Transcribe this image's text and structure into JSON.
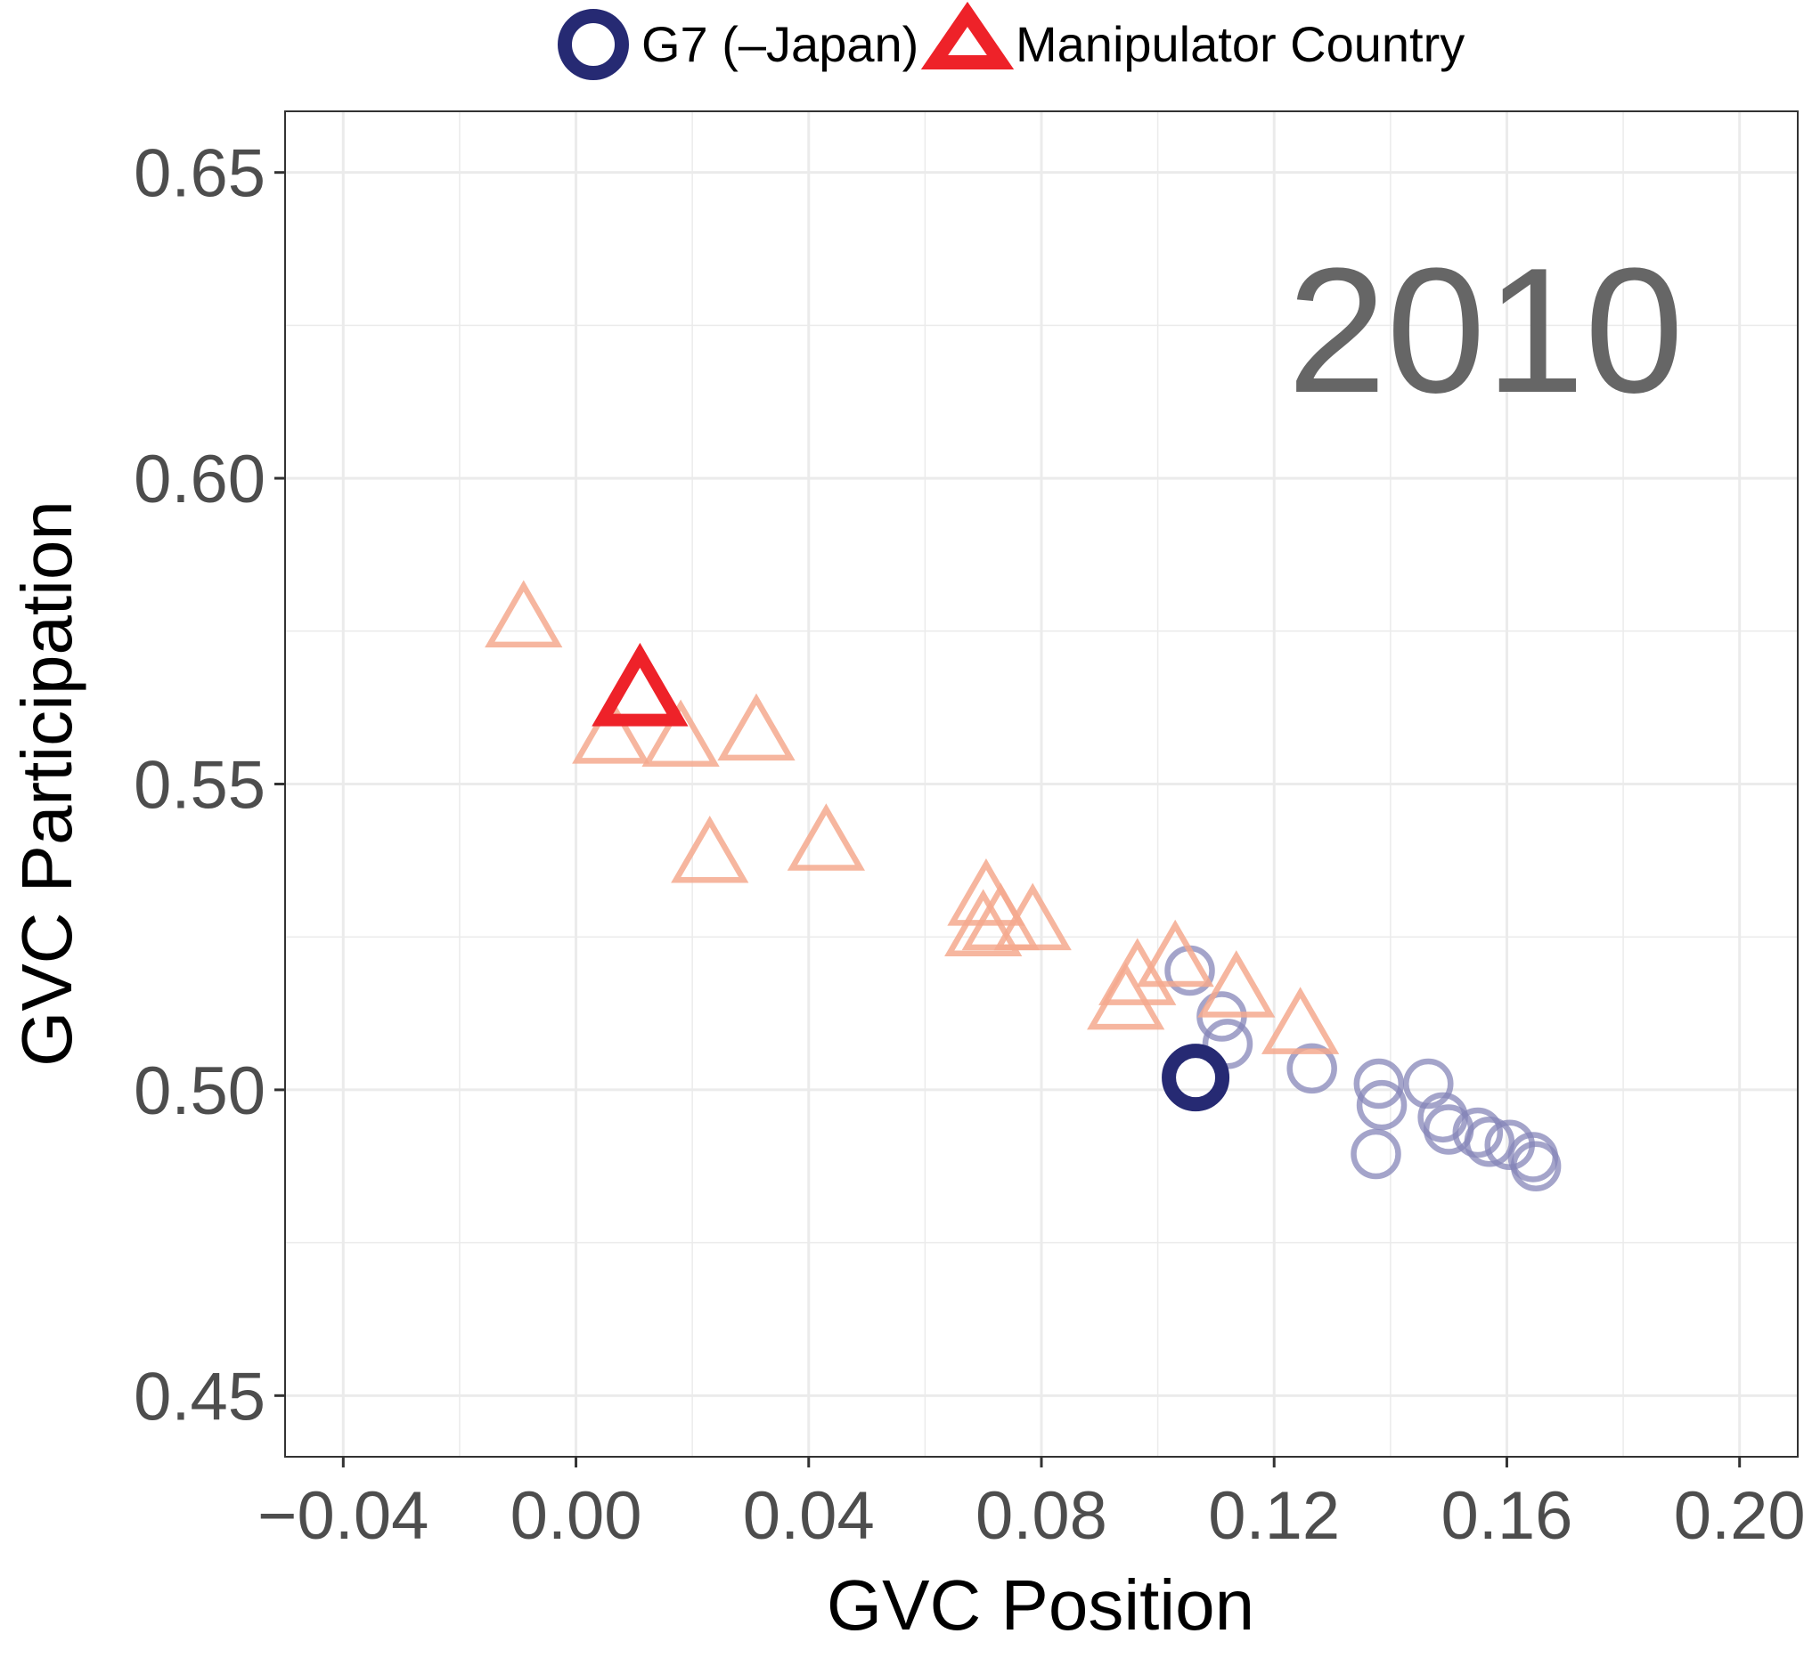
{
  "chart_data": {
    "type": "scatter",
    "xlabel": "GVC Position",
    "ylabel": "GVC Participation",
    "annotation": "2010",
    "xlim": [
      -0.05,
      0.21
    ],
    "ylim": [
      0.44,
      0.66
    ],
    "x_ticks": [
      -0.04,
      0.0,
      0.04,
      0.08,
      0.12,
      0.16,
      0.2
    ],
    "x_tick_labels": [
      "−0.04",
      "0.00",
      "0.04",
      "0.08",
      "0.12",
      "0.16",
      "0.20"
    ],
    "y_ticks": [
      0.45,
      0.5,
      0.55,
      0.6,
      0.65
    ],
    "y_tick_labels": [
      "0.45",
      "0.50",
      "0.55",
      "0.60",
      "0.65"
    ],
    "grid": true,
    "legend_position": "top",
    "series": [
      {
        "name": "G7 (–Japan)",
        "marker": "circle",
        "color": "#262a73",
        "highlight": {
          "x": 0.1065,
          "y": 0.502
        },
        "background": [
          {
            "x": 0.1055,
            "y": 0.5195
          },
          {
            "x": 0.111,
            "y": 0.512
          },
          {
            "x": 0.112,
            "y": 0.5075
          },
          {
            "x": 0.1265,
            "y": 0.5035
          },
          {
            "x": 0.138,
            "y": 0.501
          },
          {
            "x": 0.1385,
            "y": 0.4975
          },
          {
            "x": 0.1375,
            "y": 0.4895
          },
          {
            "x": 0.1465,
            "y": 0.501
          },
          {
            "x": 0.149,
            "y": 0.4955
          },
          {
            "x": 0.15,
            "y": 0.4935
          },
          {
            "x": 0.155,
            "y": 0.493
          },
          {
            "x": 0.157,
            "y": 0.4915
          },
          {
            "x": 0.1605,
            "y": 0.491
          },
          {
            "x": 0.1645,
            "y": 0.489
          },
          {
            "x": 0.165,
            "y": 0.4875
          }
        ]
      },
      {
        "name": "Manipulator Country",
        "marker": "triangle",
        "color": "#ee2229",
        "highlight": {
          "x": 0.011,
          "y": 0.564
        },
        "background": [
          {
            "x": -0.009,
            "y": 0.576
          },
          {
            "x": 0.006,
            "y": 0.557
          },
          {
            "x": 0.018,
            "y": 0.5565
          },
          {
            "x": 0.031,
            "y": 0.5575
          },
          {
            "x": 0.023,
            "y": 0.5375
          },
          {
            "x": 0.043,
            "y": 0.5395
          },
          {
            "x": 0.0705,
            "y": 0.5305
          },
          {
            "x": 0.07,
            "y": 0.5255
          },
          {
            "x": 0.073,
            "y": 0.5265
          },
          {
            "x": 0.0785,
            "y": 0.5265
          },
          {
            "x": 0.103,
            "y": 0.5205
          },
          {
            "x": 0.0965,
            "y": 0.5175
          },
          {
            "x": 0.0945,
            "y": 0.5135
          },
          {
            "x": 0.1135,
            "y": 0.5155
          },
          {
            "x": 0.1245,
            "y": 0.5095
          }
        ]
      }
    ]
  },
  "colors": {
    "grid": "#ebebeb",
    "panel_border": "#333333",
    "g7_faded": "#8585b8",
    "manipulator_faded": "#f4a98e"
  }
}
